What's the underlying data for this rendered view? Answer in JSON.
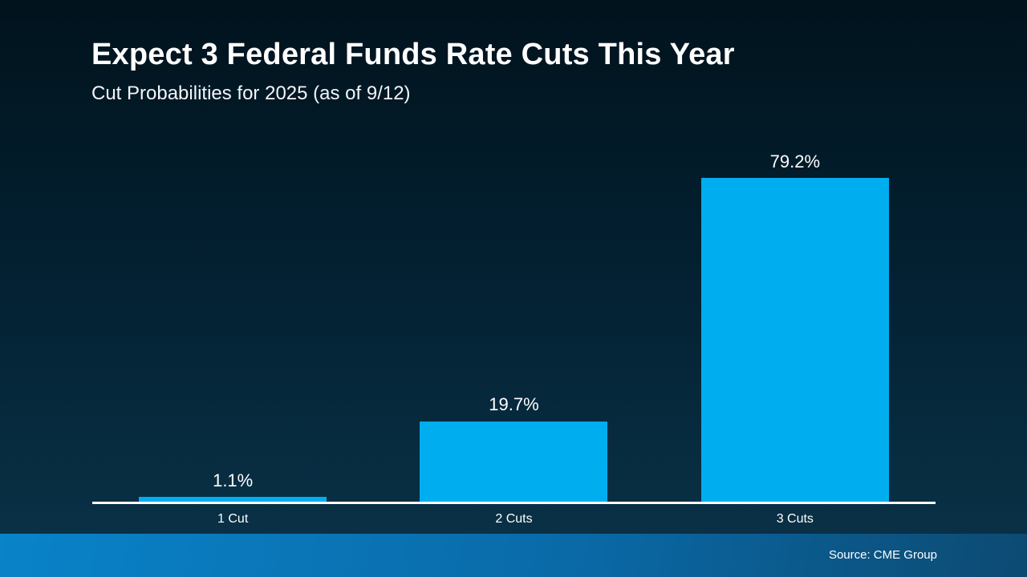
{
  "slide": {
    "title": "Expect 3 Federal Funds Rate Cuts This Year",
    "subtitle": "Cut Probabilities for 2025 (as of 9/12)",
    "source": "Source: CME Group"
  },
  "colors": {
    "background_top": "#01131d",
    "background_bottom": "#0a3349",
    "bar": "#00AEEF",
    "axis": "#ffffff",
    "text": "#ffffff",
    "footer_left": "#0983c9",
    "footer_right": "#0c4a72"
  },
  "chart_data": {
    "type": "bar",
    "categories": [
      "1 Cut",
      "2 Cuts",
      "3 Cuts"
    ],
    "values": [
      1.1,
      19.7,
      79.2
    ],
    "value_labels": [
      "1.1%",
      "19.7%",
      "79.2%"
    ],
    "title": "Expect 3 Federal Funds Rate Cuts This Year",
    "subtitle": "Cut Probabilities for 2025 (as of 9/12)",
    "xlabel": "",
    "ylabel": "",
    "ylim": [
      0,
      90
    ],
    "grid": false,
    "legend": false,
    "bar_color": "#00AEEF",
    "source": "Source: CME Group"
  }
}
